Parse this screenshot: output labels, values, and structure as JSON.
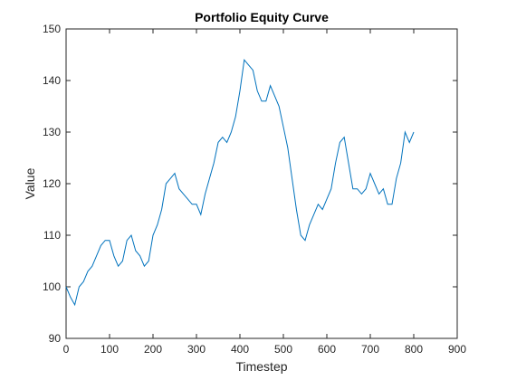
{
  "chart_data": {
    "type": "line",
    "title": "Portfolio Equity Curve",
    "x_label": "Timestep",
    "y_label": "Value",
    "x": [
      0,
      10,
      20,
      30,
      40,
      50,
      60,
      70,
      80,
      90,
      100,
      110,
      120,
      130,
      140,
      150,
      160,
      170,
      180,
      190,
      200,
      210,
      220,
      230,
      240,
      250,
      260,
      270,
      280,
      290,
      300,
      310,
      320,
      330,
      340,
      350,
      360,
      370,
      380,
      390,
      400,
      410,
      420,
      430,
      440,
      450,
      460,
      470,
      480,
      490,
      500,
      510,
      520,
      530,
      540,
      550,
      560,
      570,
      580,
      590,
      600,
      610,
      620,
      630,
      640,
      650,
      660,
      670,
      680,
      690,
      700,
      710,
      720,
      730,
      740,
      750,
      760,
      770,
      780,
      790,
      800
    ],
    "values": [
      100,
      98,
      96.5,
      100,
      101,
      103,
      104,
      106,
      108,
      109,
      109,
      106,
      104,
      105,
      109,
      110,
      107,
      106,
      104,
      105,
      110,
      112,
      115,
      120,
      121,
      122,
      119,
      118,
      117,
      116,
      116,
      114,
      118,
      121,
      124,
      128,
      129,
      128,
      130,
      133,
      138,
      144,
      143,
      142,
      138,
      136,
      136,
      139,
      137,
      135,
      131,
      127,
      121,
      115,
      110,
      109,
      112,
      114,
      116,
      115,
      117,
      119,
      124,
      128,
      129,
      124,
      119,
      119,
      118,
      119,
      122,
      120,
      118,
      119,
      116,
      116,
      121,
      124,
      130,
      128,
      130
    ],
    "color": "#0072bd",
    "xlim": [
      0,
      900
    ],
    "xticks": [
      0,
      100,
      200,
      300,
      400,
      500,
      600,
      700,
      800,
      900
    ],
    "ylim": [
      90,
      150
    ],
    "yticks": [
      90,
      100,
      110,
      120,
      130,
      140,
      150
    ]
  }
}
